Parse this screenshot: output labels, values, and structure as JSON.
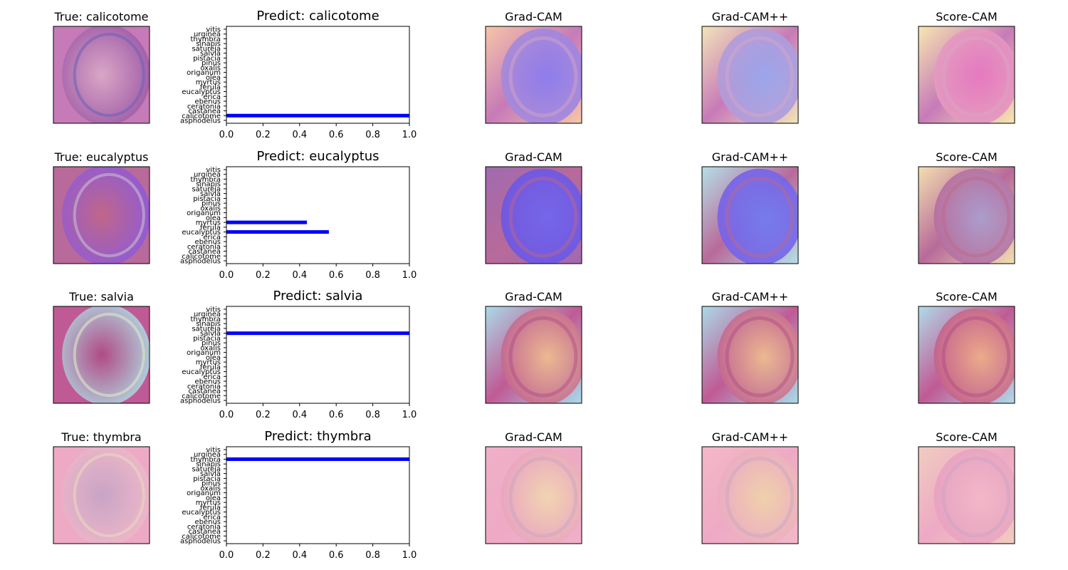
{
  "chart_data": {
    "type": "bar",
    "orientation": "horizontal",
    "categories": [
      "asphodelus",
      "calicotome",
      "castanea",
      "ceratonia",
      "ebenus",
      "erica",
      "eucalyptus",
      "ferula",
      "myrtus",
      "olea",
      "origanum",
      "oxalis",
      "pinus",
      "pistacia",
      "salvia",
      "satureja",
      "sinapis",
      "thymbra",
      "urginea",
      "vitis"
    ],
    "xlim": [
      0,
      1.0
    ],
    "xticks": [
      "0.0",
      "0.2",
      "0.4",
      "0.6",
      "0.8",
      "1.0"
    ],
    "bar_color": "#0000ff",
    "cam_titles": [
      "Grad-CAM",
      "Grad-CAM++",
      "Score-CAM"
    ],
    "rows": [
      {
        "true_title": "True: calicotome",
        "predict_title": "Predict: calicotome",
        "values": {
          "calicotome": 1.0
        }
      },
      {
        "true_title": "True: eucalyptus",
        "predict_title": "Predict: eucalyptus",
        "values": {
          "eucalyptus": 0.56,
          "myrtus": 0.44
        }
      },
      {
        "true_title": "True: salvia",
        "predict_title": "Predict: salvia",
        "values": {
          "salvia": 1.0
        }
      },
      {
        "true_title": "True: thymbra",
        "predict_title": "Predict: thymbra",
        "values": {
          "thymbra": 1.0
        }
      }
    ]
  },
  "image_palettes": [
    [
      "#d9a7c6",
      "#9e5aa6",
      "#c77ab8",
      "#6f63b8"
    ],
    [
      "#c06688",
      "#8e5bd8",
      "#b86a9a",
      "#c9bdd0"
    ],
    [
      "#b04a86",
      "#b0d7e0",
      "#c05a95",
      "#e0e6c8"
    ],
    [
      "#c8a4c6",
      "#f0b8c8",
      "#eeaac4",
      "#e8d8c0"
    ]
  ],
  "cam_palettes": [
    [
      [
        "#a98bd8",
        "#8a7cf0",
        "#f6c6a8"
      ],
      [
        "#b69ad6",
        "#97a8ef",
        "#f2e4b8"
      ],
      [
        "#e39ec0",
        "#e878c0",
        "#f7e7b0"
      ]
    ],
    [
      [
        "#6d55e0",
        "#7066f0",
        "#a06ab0"
      ],
      [
        "#7a5fe6",
        "#6f7cf0",
        "#b4e0e8"
      ],
      [
        "#b86a9a",
        "#a9a0d0",
        "#f2e0b0"
      ]
    ],
    [
      [
        "#c06090",
        "#f0c090",
        "#a9dbe8"
      ],
      [
        "#c06090",
        "#f0c090",
        "#a9dbe8"
      ],
      [
        "#c05a8c",
        "#f0b088",
        "#b0dbe8"
      ]
    ],
    [
      [
        "#e8a0c0",
        "#f2d8b0",
        "#f0b0c8"
      ],
      [
        "#eba8c4",
        "#f0d4a8",
        "#f4b8c8"
      ],
      [
        "#e6a0c0",
        "#f2b8c8",
        "#f0ccc0"
      ]
    ]
  ]
}
